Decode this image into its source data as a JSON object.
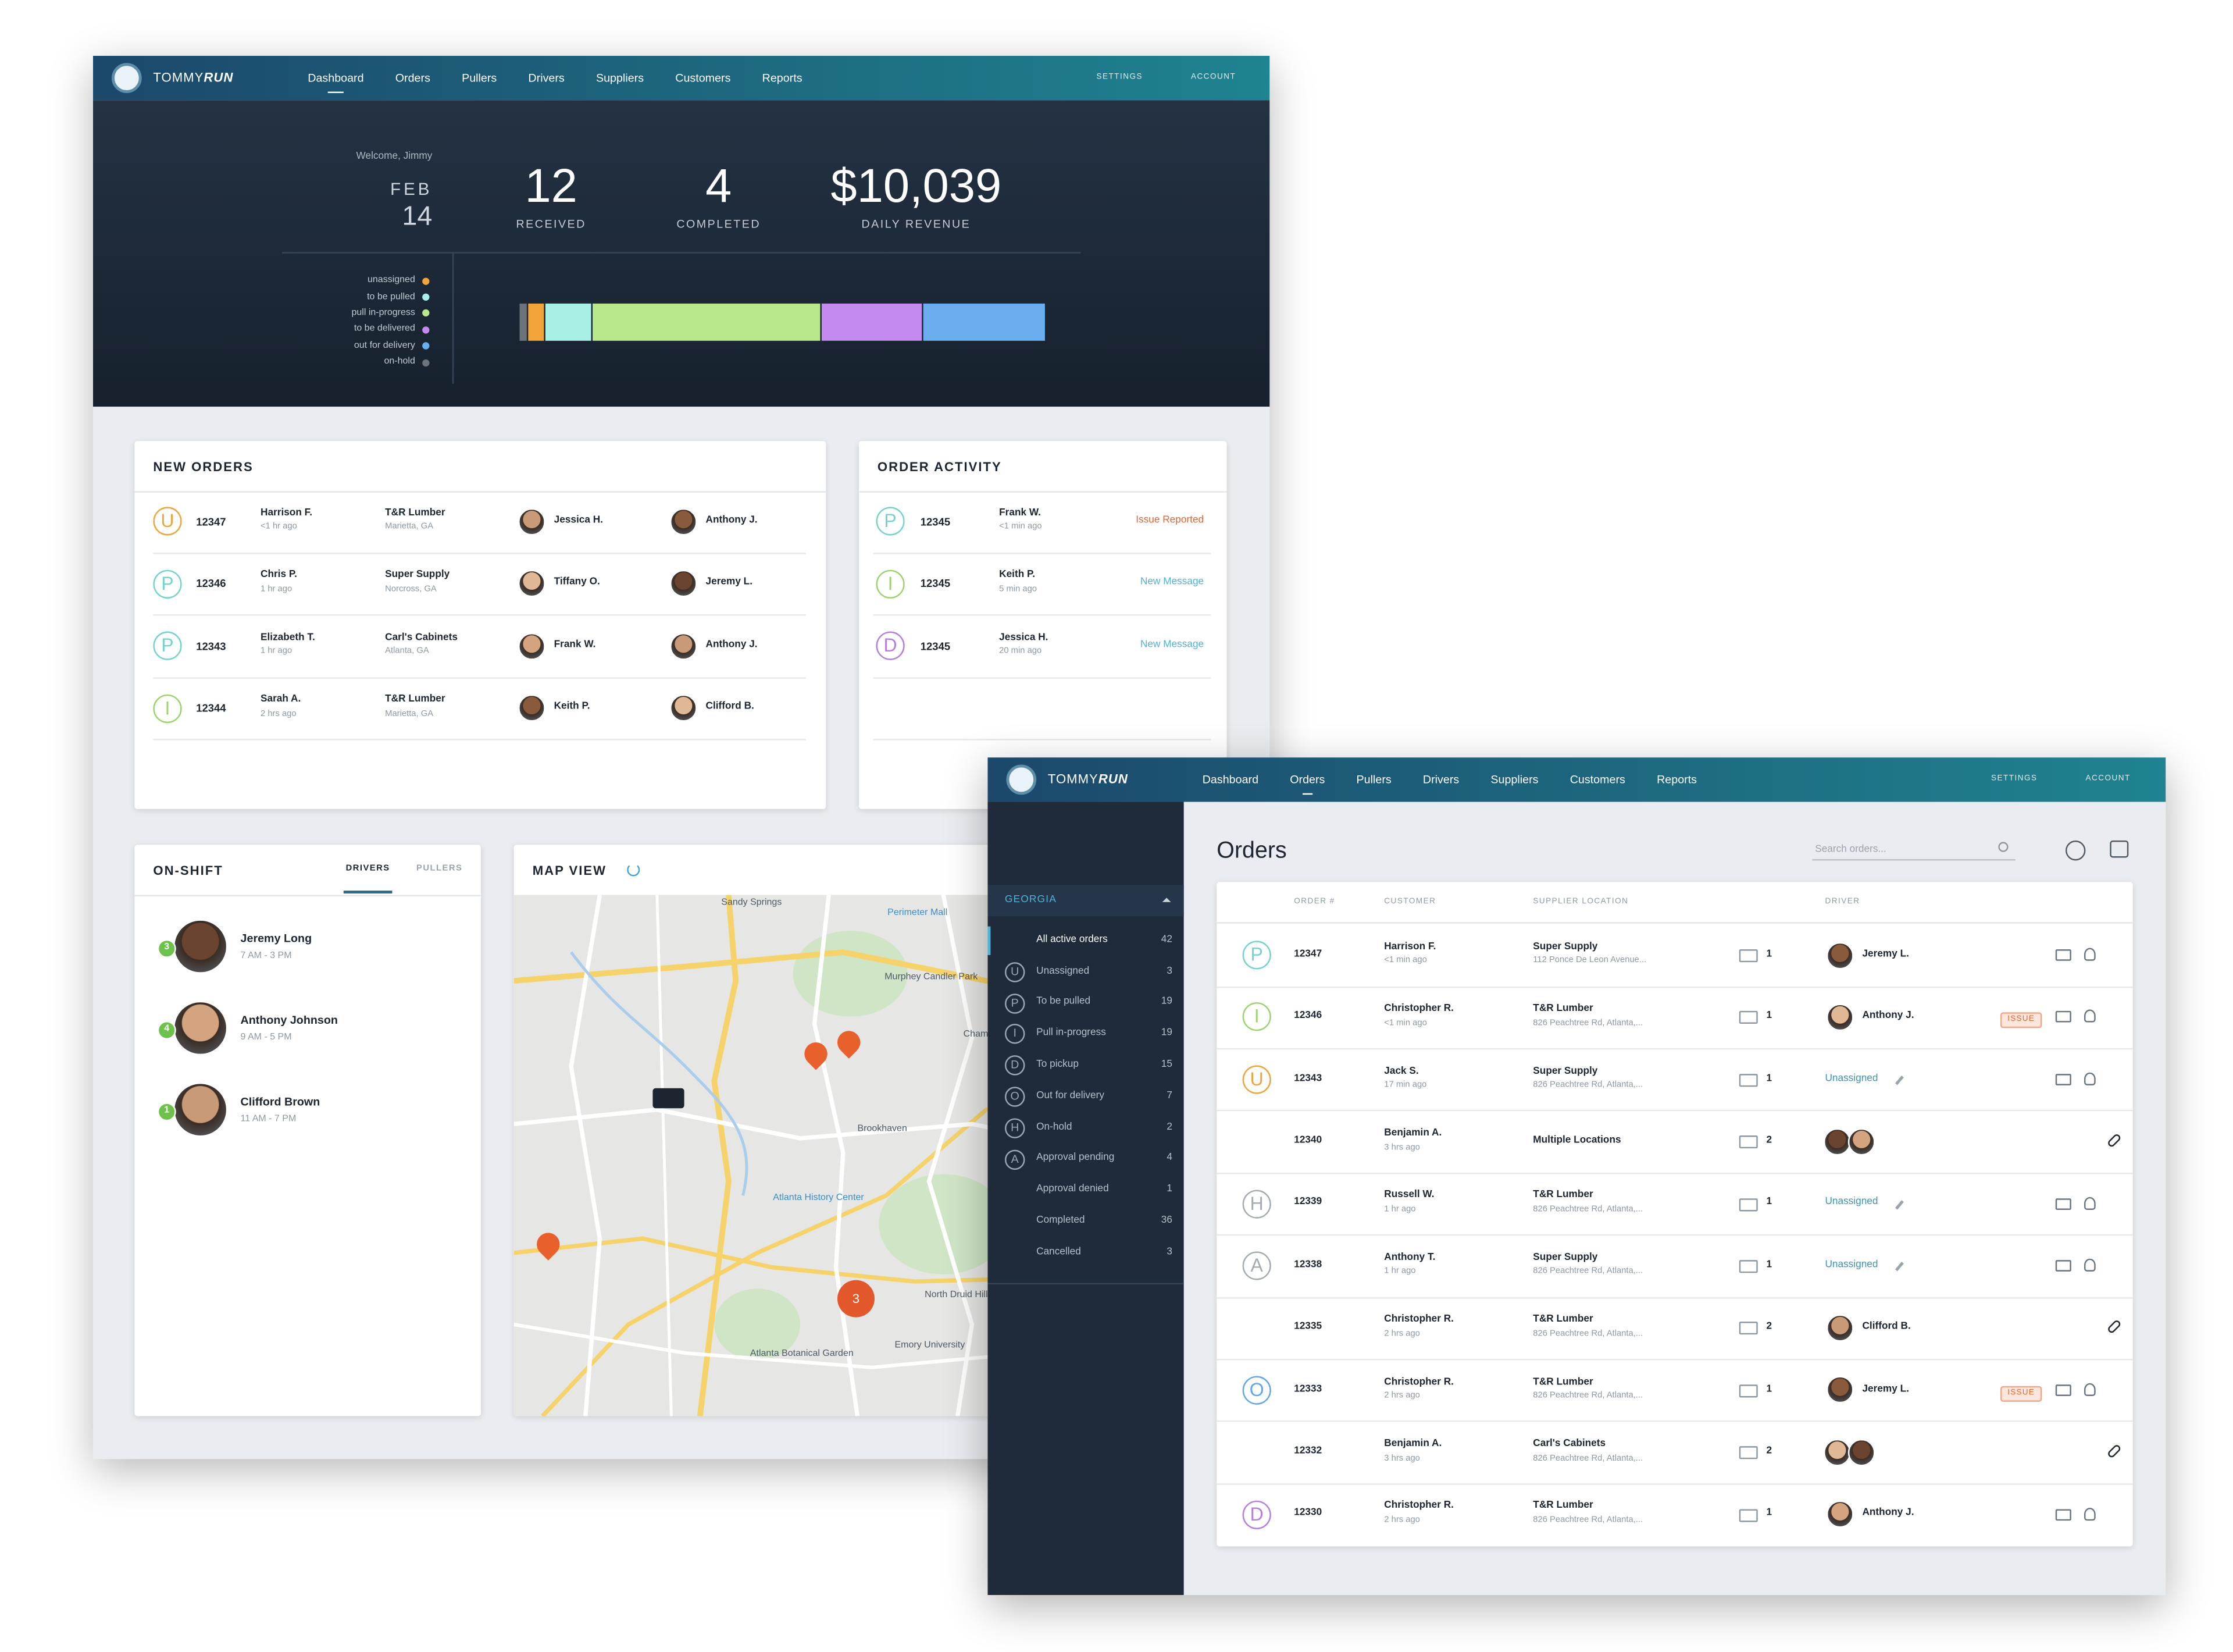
{
  "status_colors": {
    "U": "#f2a33a",
    "P": "#72d4cc",
    "I": "#9bd46e",
    "D": "#b57ee0",
    "O": "#5fa6ec",
    "H": "#a4abb3",
    "A": "#a4abb3"
  },
  "dashboard": {
    "nav": {
      "brand": [
        "TOMMY",
        "RUN"
      ],
      "links": [
        "Dashboard",
        "Orders",
        "Pullers",
        "Drivers",
        "Suppliers",
        "Customers",
        "Reports"
      ],
      "active": 0,
      "right_links": [
        "SETTINGS",
        "ACCOUNT"
      ]
    },
    "header": {
      "welcome": "Welcome, Jimmy",
      "month": "FEB",
      "day": 14,
      "stats": [
        {
          "value": 12,
          "label": "RECEIVED"
        },
        {
          "value": 4,
          "label": "COMPLETED"
        },
        {
          "value": "$10,039",
          "label": "DAILY REVENUE"
        }
      ],
      "status_legend": [
        {
          "name": "unassigned",
          "color": "#f2a33a",
          "value": 12
        },
        {
          "name": "to be pulled",
          "color": "#a8f0e6",
          "value": 32
        },
        {
          "name": "pull in-progress",
          "color": "#b9e88a",
          "value": 158
        },
        {
          "name": "to be delivered",
          "color": "#c48af0",
          "value": 69
        },
        {
          "name": "out for delivery",
          "color": "#6aaef0",
          "value": 85
        },
        {
          "name": "on-hold",
          "color": "#6c737b",
          "value": 6
        }
      ]
    },
    "new_orders": {
      "title": "NEW ORDERS",
      "rows": [
        {
          "status": "U",
          "id": "12347",
          "customer": "Harrison F.",
          "time": "<1 hr ago",
          "supplier": "T&R Lumber",
          "location": "Marietta, GA",
          "driver": "Jessica H.",
          "puller": "Anthony J."
        },
        {
          "status": "P",
          "id": "12346",
          "customer": "Chris P.",
          "time": "1 hr ago",
          "supplier": "Super Supply",
          "location": "Norcross, GA",
          "driver": "Tiffany O.",
          "puller": "Jeremy L."
        },
        {
          "status": "P",
          "id": "12343",
          "customer": "Elizabeth T.",
          "time": "1 hr ago",
          "supplier": "Carl's Cabinets",
          "location": "Atlanta, GA",
          "driver": "Frank W.",
          "puller": "Anthony J."
        },
        {
          "status": "I",
          "id": "12344",
          "customer": "Sarah A.",
          "time": "2 hrs ago",
          "supplier": "T&R Lumber",
          "location": "Marietta, GA",
          "driver": "Keith P.",
          "puller": "Clifford B."
        }
      ]
    },
    "order_activity": {
      "title": "ORDER ACTIVITY",
      "rows": [
        {
          "status": "P",
          "id": "12345",
          "name": "Frank W.",
          "time": "<1 min ago",
          "message": "Issue Reported",
          "color": "#e8642c"
        },
        {
          "status": "I",
          "id": "12345",
          "name": "Keith P.",
          "time": "5 min ago",
          "message": "New Message",
          "color": "#4fb3d6"
        },
        {
          "status": "D",
          "id": "12345",
          "name": "Jessica H.",
          "time": "20 min ago",
          "message": "New Message",
          "color": "#4fb3d6"
        }
      ]
    },
    "on_shift": {
      "title": "ON-SHIFT",
      "tabs": [
        "DRIVERS",
        "PULLERS"
      ],
      "people": [
        {
          "count": 3,
          "name": "Jeremy Long",
          "hours": "7 AM - 3 PM"
        },
        {
          "count": 4,
          "name": "Anthony Johnson",
          "hours": "9 AM - 5 PM"
        },
        {
          "count": 1,
          "name": "Clifford Brown",
          "hours": "11 AM - 7 PM"
        }
      ]
    },
    "map": {
      "title": "MAP VIEW",
      "labels": [
        "Sandy Springs",
        "Perimeter Mall",
        "Murphey Candler Park",
        "Chamblee",
        "Brookhaven",
        "Atlanta History Center",
        "North Druid Hills",
        "Emory University",
        "Atlanta Botanical Garden"
      ],
      "cluster": 3
    }
  },
  "orders_page": {
    "nav": {
      "brand": [
        "TOMMY",
        "RUN"
      ],
      "links": [
        "Dashboard",
        "Orders",
        "Pullers",
        "Drivers",
        "Suppliers",
        "Customers",
        "Reports"
      ],
      "active": 1,
      "right_links": [
        "SETTINGS",
        "ACCOUNT"
      ]
    },
    "sidebar": {
      "region": "GEORGIA",
      "items": [
        {
          "icon": null,
          "label": "All active orders",
          "count": 42
        },
        {
          "icon": "U",
          "label": "Unassigned",
          "count": 3
        },
        {
          "icon": "P",
          "label": "To be pulled",
          "count": 19
        },
        {
          "icon": "I",
          "label": "Pull in-progress",
          "count": 19
        },
        {
          "icon": "D",
          "label": "To pickup",
          "count": 15
        },
        {
          "icon": "O",
          "label": "Out for delivery",
          "count": 7
        },
        {
          "icon": "H",
          "label": "On-hold",
          "count": 2
        },
        {
          "icon": "A",
          "label": "Approval pending",
          "count": 4
        },
        {
          "icon": null,
          "label": "Approval denied",
          "count": 1
        },
        {
          "icon": null,
          "label": "Completed",
          "count": 36
        },
        {
          "icon": null,
          "label": "Cancelled",
          "count": 3
        }
      ]
    },
    "title": "Orders",
    "search_placeholder": "Search orders...",
    "columns": [
      "ORDER #",
      "CUSTOMER",
      "SUPPLIER LOCATION",
      "DRIVER"
    ],
    "rows": [
      {
        "status": "P",
        "id": "12347",
        "customer": "Harrison F.",
        "time": "<1 min ago",
        "supplier": "Super Supply",
        "address": "112 Ponce De Leon Avenue...",
        "trucks": 1,
        "driver": "Jeremy L.",
        "assigned": true
      },
      {
        "status": "I",
        "id": "12346",
        "customer": "Christopher R.",
        "time": "<1 min ago",
        "supplier": "T&R Lumber",
        "address": "826 Peachtree Rd, Atlanta,...",
        "trucks": 1,
        "driver": "Anthony J.",
        "assigned": true,
        "issue": "ISSUE"
      },
      {
        "status": "U",
        "id": "12343",
        "customer": "Jack S.",
        "time": "17 min ago",
        "supplier": "Super Supply",
        "address": "826 Peachtree Rd, Atlanta,...",
        "trucks": 1,
        "driver": "Unassigned",
        "assigned": false
      },
      {
        "status": null,
        "id": "12340",
        "customer": "Benjamin A.",
        "time": "3 hrs ago",
        "supplier": "Multiple Locations",
        "address": null,
        "trucks": 2,
        "driver": null,
        "assigned": true
      },
      {
        "status": "H",
        "id": "12339",
        "customer": "Russell W.",
        "time": "1 hr ago",
        "supplier": "T&R Lumber",
        "address": "826 Peachtree Rd, Atlanta,...",
        "trucks": 1,
        "driver": "Unassigned",
        "assigned": false
      },
      {
        "status": "A",
        "id": "12338",
        "customer": "Anthony T.",
        "time": "1 hr ago",
        "supplier": "Super Supply",
        "address": "826 Peachtree Rd, Atlanta,...",
        "trucks": 1,
        "driver": "Unassigned",
        "assigned": false
      },
      {
        "status": null,
        "id": "12335",
        "customer": "Christopher R.",
        "time": "2 hrs ago",
        "supplier": "T&R Lumber",
        "address": "826 Peachtree Rd, Atlanta,...",
        "trucks": 2,
        "driver": "Clifford B.",
        "assigned": true
      },
      {
        "status": "O",
        "id": "12333",
        "customer": "Christopher R.",
        "time": "2 hrs ago",
        "supplier": "T&R Lumber",
        "address": "826 Peachtree Rd, Atlanta,...",
        "trucks": 1,
        "driver": "Jeremy L.",
        "assigned": true,
        "issue": "ISSUE"
      },
      {
        "status": null,
        "id": "12332",
        "customer": "Benjamin A.",
        "time": "3 hrs ago",
        "supplier": "Carl's Cabinets",
        "address": "826 Peachtree Rd, Atlanta,...",
        "trucks": 2,
        "driver": null,
        "assigned": true
      },
      {
        "status": "D",
        "id": "12330",
        "customer": "Christopher R.",
        "time": "2 hrs ago",
        "supplier": "T&R Lumber",
        "address": "826 Peachtree Rd, Atlanta,...",
        "trucks": 1,
        "driver": "Anthony J.",
        "assigned": true
      }
    ]
  }
}
